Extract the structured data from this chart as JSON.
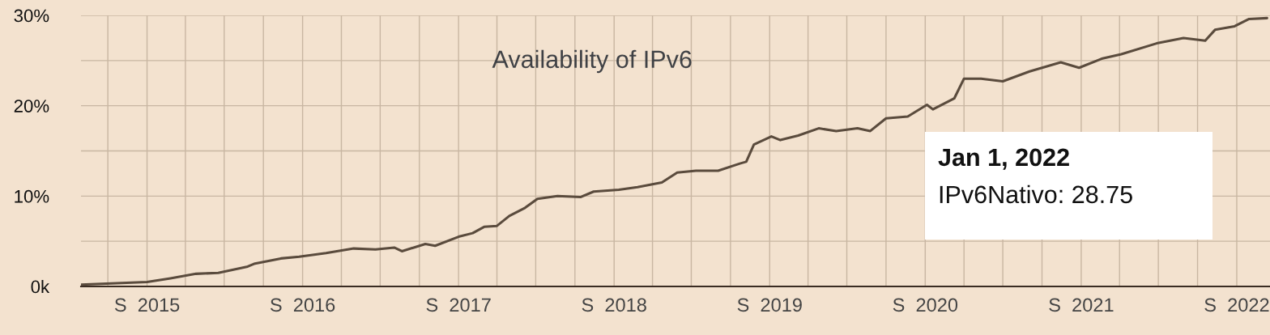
{
  "chart_data": {
    "type": "line",
    "title": "Availability of IPv6",
    "x": [
      "2014-07-30",
      "2015-01-01",
      "2015-02-25",
      "2015-04-26",
      "2015-06-17",
      "2015-08-25",
      "2015-09-09",
      "2015-11-11",
      "2015-12-24",
      "2016-02-25",
      "2016-04-30",
      "2016-06-20",
      "2016-08-03",
      "2016-08-21",
      "2016-10-15",
      "2016-11-07",
      "2017-01-01",
      "2017-02-03",
      "2017-03-02",
      "2017-04-01",
      "2017-04-30",
      "2017-06-06",
      "2017-07-05",
      "2017-08-21",
      "2017-10-15",
      "2017-11-14",
      "2018-01-12",
      "2018-02-25",
      "2018-04-23",
      "2018-05-29",
      "2018-07-12",
      "2018-09-02",
      "2018-10-23",
      "2018-11-07",
      "2018-11-25",
      "2019-01-05",
      "2019-01-26",
      "2019-03-09",
      "2019-04-26",
      "2019-06-06",
      "2019-07-26",
      "2019-08-25",
      "2019-10-01",
      "2019-11-21",
      "2020-01-05",
      "2020-01-19",
      "2020-03-09",
      "2020-04-01",
      "2020-05-11",
      "2020-07-01",
      "2020-09-02",
      "2020-11-14",
      "2020-12-27",
      "2021-02-18",
      "2021-04-05",
      "2021-06-27",
      "2021-08-29",
      "2021-10-19",
      "2021-11-11",
      "2021-12-27",
      "2022-01-30",
      "2022-03-13"
    ],
    "series": [
      {
        "color": "#5a4b3d",
        "values": [
          0.2,
          0.5,
          0.9,
          1.4,
          1.5,
          2.2,
          2.5,
          3.1,
          3.3,
          3.7,
          4.2,
          4.1,
          4.3,
          3.9,
          4.7,
          4.5,
          5.5,
          5.9,
          6.6,
          6.7,
          7.8,
          8.7,
          9.7,
          10.0,
          9.9,
          10.5,
          10.7,
          11.0,
          11.5,
          12.6,
          12.8,
          12.8,
          13.6,
          13.8,
          15.7,
          16.6,
          16.2,
          16.7,
          17.5,
          17.2,
          17.5,
          17.2,
          18.6,
          18.8,
          20.1,
          19.6,
          20.8,
          23.0,
          23.0,
          22.7,
          23.8,
          24.8,
          24.2,
          25.2,
          25.7,
          26.9,
          27.5,
          27.2,
          28.4,
          28.8,
          29.6,
          29.7
        ]
      }
    ],
    "xlim": [
      "2014-07-30",
      "2022-03-20"
    ],
    "ylim": [
      0,
      30
    ],
    "xticks": [
      {
        "value": "2014-10-01",
        "label": null
      },
      {
        "value": "2015-01-01",
        "label": "S  2015"
      },
      {
        "value": "2015-04-01",
        "label": null
      },
      {
        "value": "2015-07-01",
        "label": null
      },
      {
        "value": "2015-10-01",
        "label": null
      },
      {
        "value": "2016-01-01",
        "label": "S  2016"
      },
      {
        "value": "2016-04-01",
        "label": null
      },
      {
        "value": "2016-07-01",
        "label": null
      },
      {
        "value": "2016-10-01",
        "label": null
      },
      {
        "value": "2017-01-01",
        "label": "S  2017"
      },
      {
        "value": "2017-04-01",
        "label": null
      },
      {
        "value": "2017-07-01",
        "label": null
      },
      {
        "value": "2017-10-01",
        "label": null
      },
      {
        "value": "2018-01-01",
        "label": "S  2018"
      },
      {
        "value": "2018-04-01",
        "label": null
      },
      {
        "value": "2018-07-01",
        "label": null
      },
      {
        "value": "2018-10-01",
        "label": null
      },
      {
        "value": "2019-01-01",
        "label": "S  2019"
      },
      {
        "value": "2019-04-01",
        "label": null
      },
      {
        "value": "2019-07-01",
        "label": null
      },
      {
        "value": "2019-10-01",
        "label": null
      },
      {
        "value": "2020-01-01",
        "label": "S  2020"
      },
      {
        "value": "2020-04-01",
        "label": null
      },
      {
        "value": "2020-07-01",
        "label": null
      },
      {
        "value": "2020-10-01",
        "label": null
      },
      {
        "value": "2021-01-01",
        "label": "S  2021"
      },
      {
        "value": "2021-04-01",
        "label": null
      },
      {
        "value": "2021-07-01",
        "label": null
      },
      {
        "value": "2021-10-01",
        "label": null
      },
      {
        "value": "2022-01-01",
        "label": "S  2022"
      }
    ],
    "yticks": [
      {
        "value": 0,
        "label": "0k"
      },
      {
        "value": 5,
        "label": null
      },
      {
        "value": 10,
        "label": "10%"
      },
      {
        "value": 15,
        "label": null
      },
      {
        "value": 20,
        "label": "20%"
      },
      {
        "value": 25,
        "label": null
      },
      {
        "value": 30,
        "label": "30%"
      }
    ],
    "grid": true,
    "annotations": [
      "Jan 1, 2022",
      "IPv6Nativo: 28.75"
    ]
  }
}
